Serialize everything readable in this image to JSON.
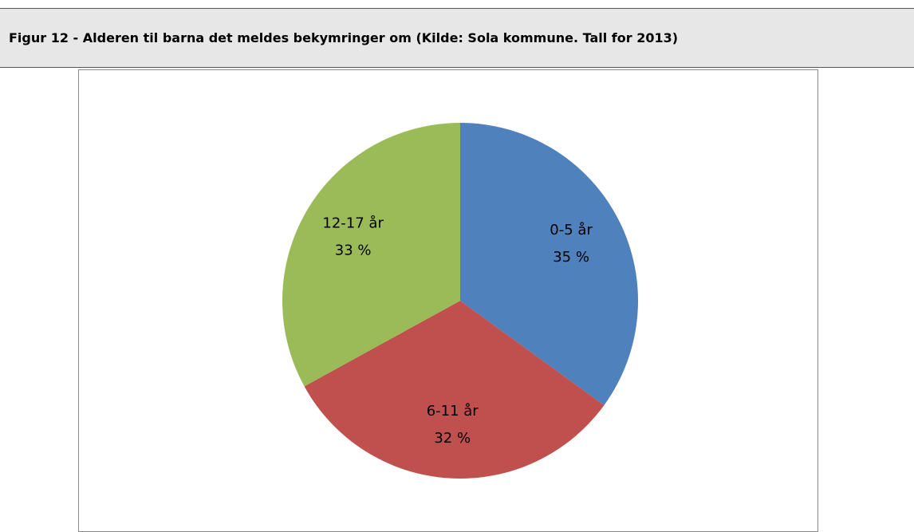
{
  "chart_data": {
    "type": "pie",
    "title": "Figur 12 - Alderen til barna det meldes bekymringer om (Kilde: Sola kommune. Tall for 2013)",
    "categories": [
      "0-5 år",
      "6-11 år",
      "12-17 år"
    ],
    "values": [
      35,
      32,
      33
    ],
    "value_labels": [
      "35 %",
      "32 %",
      "33 %"
    ],
    "colors": [
      "#4f81bd",
      "#c0504d",
      "#9bbb59"
    ]
  }
}
